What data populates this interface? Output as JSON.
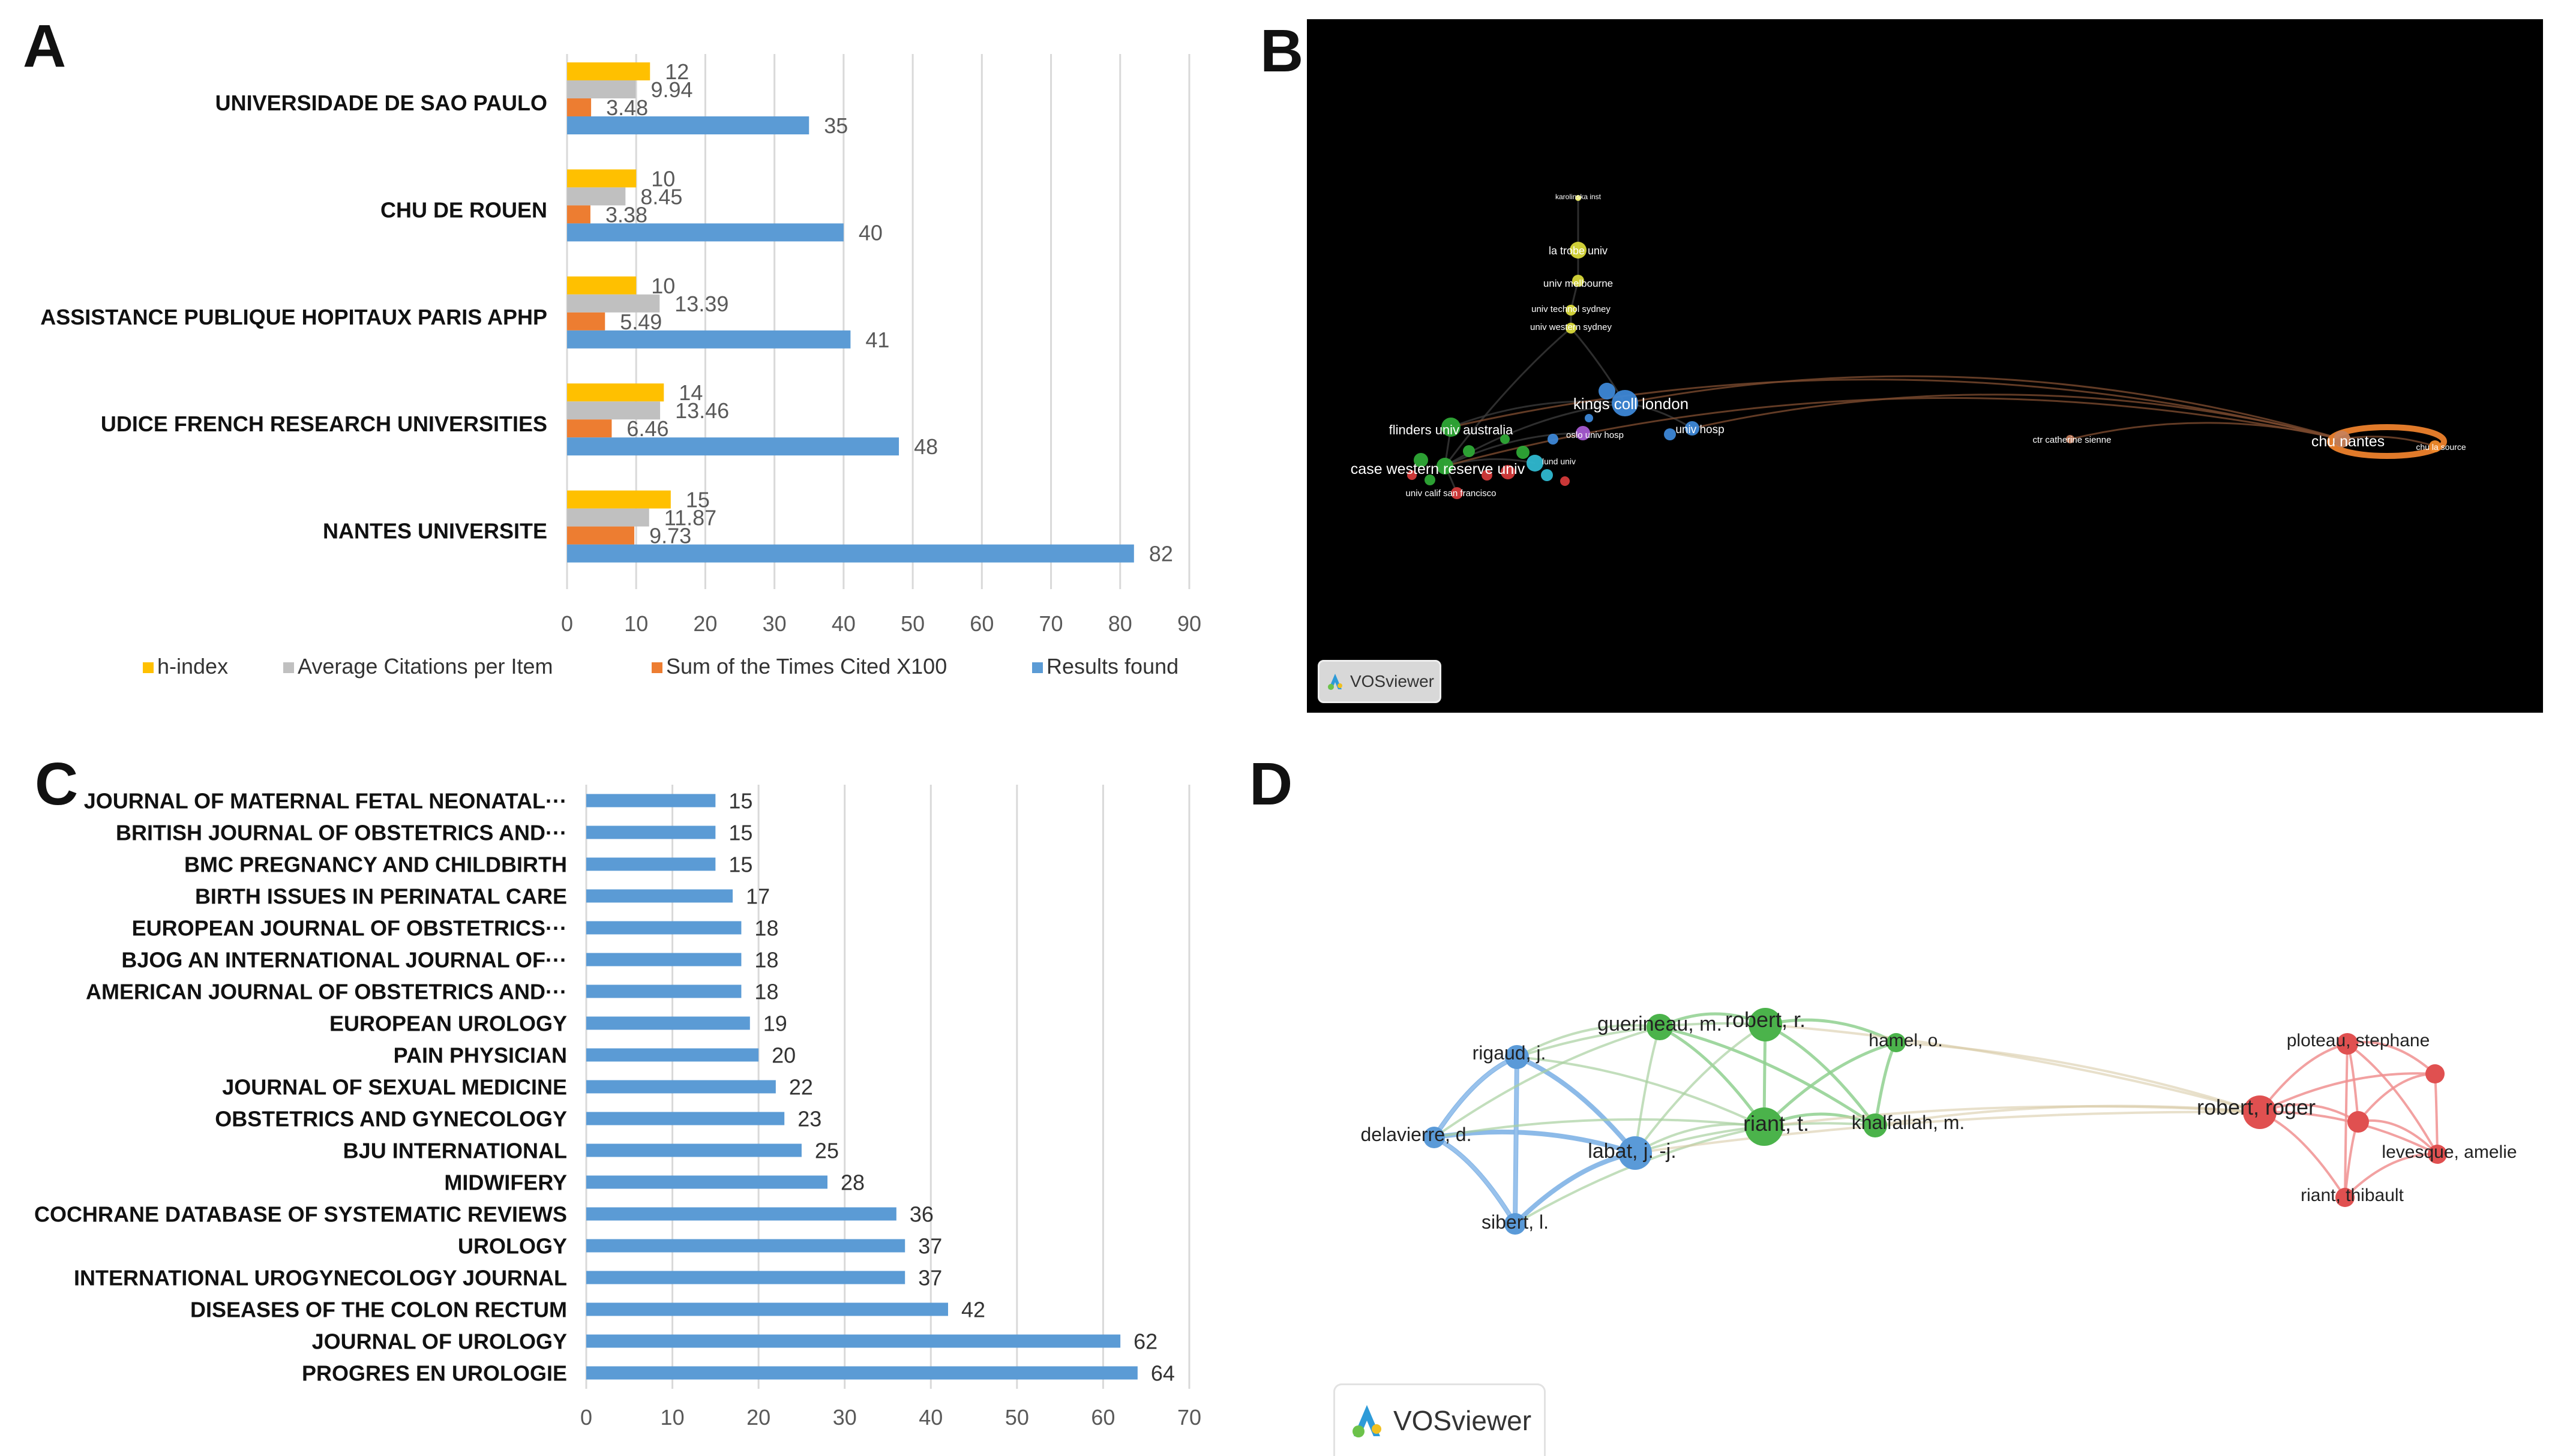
{
  "panels": {
    "A": "A",
    "B": "B",
    "C": "C",
    "D": "D"
  },
  "chart_data": [
    {
      "id": "A",
      "type": "bar",
      "orientation": "horizontal",
      "categories": [
        "UNIVERSIDADE DE SAO PAULO",
        "CHU DE ROUEN",
        "ASSISTANCE PUBLIQUE HOPITAUX PARIS APHP",
        "UDICE FRENCH RESEARCH UNIVERSITIES",
        "NANTES UNIVERSITE"
      ],
      "series": [
        {
          "name": "h-index",
          "color": "#FFC000",
          "values": [
            12,
            10,
            10,
            14,
            15
          ],
          "labels": [
            "12",
            "10",
            "10",
            "14",
            "15"
          ]
        },
        {
          "name": "Average Citations per Item",
          "color": "#C0C0C0",
          "values": [
            9.94,
            8.45,
            13.39,
            13.46,
            11.87
          ],
          "labels": [
            "9.94",
            "8.45",
            "13.39",
            "13.46",
            "11.87"
          ]
        },
        {
          "name": "Sum of the Times Cited X100",
          "color": "#ED7D31",
          "values": [
            3.48,
            3.38,
            5.49,
            6.46,
            9.73
          ],
          "labels": [
            "3.48",
            "3.38",
            "5.49",
            "6.46",
            "9.73"
          ]
        },
        {
          "name": "Results found",
          "color": "#5B9BD5",
          "values": [
            35,
            40,
            41,
            48,
            82
          ],
          "labels": [
            "35",
            "40",
            "41",
            "48",
            "82"
          ]
        }
      ],
      "xlim": [
        0,
        90
      ],
      "xticks": [
        "0",
        "10",
        "20",
        "30",
        "40",
        "50",
        "60",
        "70",
        "80",
        "90"
      ],
      "grid": true,
      "legend": "bottom"
    },
    {
      "id": "C",
      "type": "bar",
      "orientation": "horizontal",
      "categories": [
        "JOURNAL OF MATERNAL FETAL NEONATAL···",
        "BRITISH JOURNAL OF OBSTETRICS AND···",
        "BMC PREGNANCY AND CHILDBIRTH",
        "BIRTH ISSUES IN PERINATAL CARE",
        "EUROPEAN JOURNAL OF OBSTETRICS···",
        "BJOG AN INTERNATIONAL JOURNAL OF···",
        "AMERICAN JOURNAL OF OBSTETRICS AND···",
        "EUROPEAN UROLOGY",
        "PAIN PHYSICIAN",
        "JOURNAL OF SEXUAL MEDICINE",
        "OBSTETRICS AND GYNECOLOGY",
        "BJU INTERNATIONAL",
        "MIDWIFERY",
        "COCHRANE DATABASE OF SYSTEMATIC REVIEWS",
        "UROLOGY",
        "INTERNATIONAL UROGYNECOLOGY JOURNAL",
        "DISEASES OF THE COLON RECTUM",
        "JOURNAL OF UROLOGY",
        "PROGRES EN UROLOGIE"
      ],
      "values": [
        15,
        15,
        15,
        17,
        18,
        18,
        18,
        19,
        20,
        22,
        23,
        25,
        28,
        36,
        37,
        37,
        42,
        62,
        64
      ],
      "labels": [
        "15",
        "15",
        "15",
        "17",
        "18",
        "18",
        "18",
        "19",
        "20",
        "22",
        "23",
        "25",
        "28",
        "36",
        "37",
        "37",
        "42",
        "62",
        "64"
      ],
      "color": "#5B9BD5",
      "xlim": [
        0,
        70
      ],
      "xticks": [
        "0",
        "10",
        "20",
        "30",
        "40",
        "50",
        "60",
        "70"
      ],
      "grid": true
    }
  ],
  "networks": {
    "B": {
      "badge": "VOSviewer",
      "nodes": [
        {
          "label": "karolinska inst",
          "color": "#f2f26a"
        },
        {
          "label": "la trobe univ",
          "color": "#d9d93a"
        },
        {
          "label": "univ melbourne",
          "color": "#d9d93a"
        },
        {
          "label": "univ technol sydney",
          "color": "#d9d93a"
        },
        {
          "label": "univ western sydney",
          "color": "#d9d93a"
        },
        {
          "label": "kings coll london",
          "color": "#3d87d6"
        },
        {
          "label": "flinders univ australia",
          "color": "#2ea836"
        },
        {
          "label": "oslo univ hosp",
          "color": "#a45ad0"
        },
        {
          "label": "univ hosp",
          "color": "#3d87d6"
        },
        {
          "label": "lund univ",
          "color": "#2fb8d0"
        },
        {
          "label": "case western reserve univ",
          "color": "#2ea836"
        },
        {
          "label": "univ calif san francisco",
          "color": "#d43a3a"
        },
        {
          "label": "ctr catherine sienne",
          "color": "#c07a5a"
        },
        {
          "label": "chu nantes",
          "color": "#c8825a"
        },
        {
          "label": "chu la source",
          "color": "#f08a2a"
        }
      ]
    },
    "D": {
      "badge": "VOSviewer",
      "nodes": [
        {
          "label": "rigaud, j.",
          "color": "#5a9ad8"
        },
        {
          "label": "guerineau, m.",
          "color": "#4bb34b"
        },
        {
          "label": "robert, r.",
          "color": "#4bb34b"
        },
        {
          "label": "hamel, o.",
          "color": "#4bb34b"
        },
        {
          "label": "delavierre, d.",
          "color": "#5a9ad8"
        },
        {
          "label": "labat, j. -j.",
          "color": "#5a9ad8"
        },
        {
          "label": "riant, t.",
          "color": "#4bb34b"
        },
        {
          "label": "khalfallah, m.",
          "color": "#4bb34b"
        },
        {
          "label": "sibert, l.",
          "color": "#5a9ad8"
        },
        {
          "label": "ploteau, stephane",
          "color": "#e05050"
        },
        {
          "label": "robert, roger",
          "color": "#e05050"
        },
        {
          "label": "levesque, amelie",
          "color": "#e05050"
        },
        {
          "label": "riant, thibault",
          "color": "#e05050"
        }
      ]
    }
  }
}
